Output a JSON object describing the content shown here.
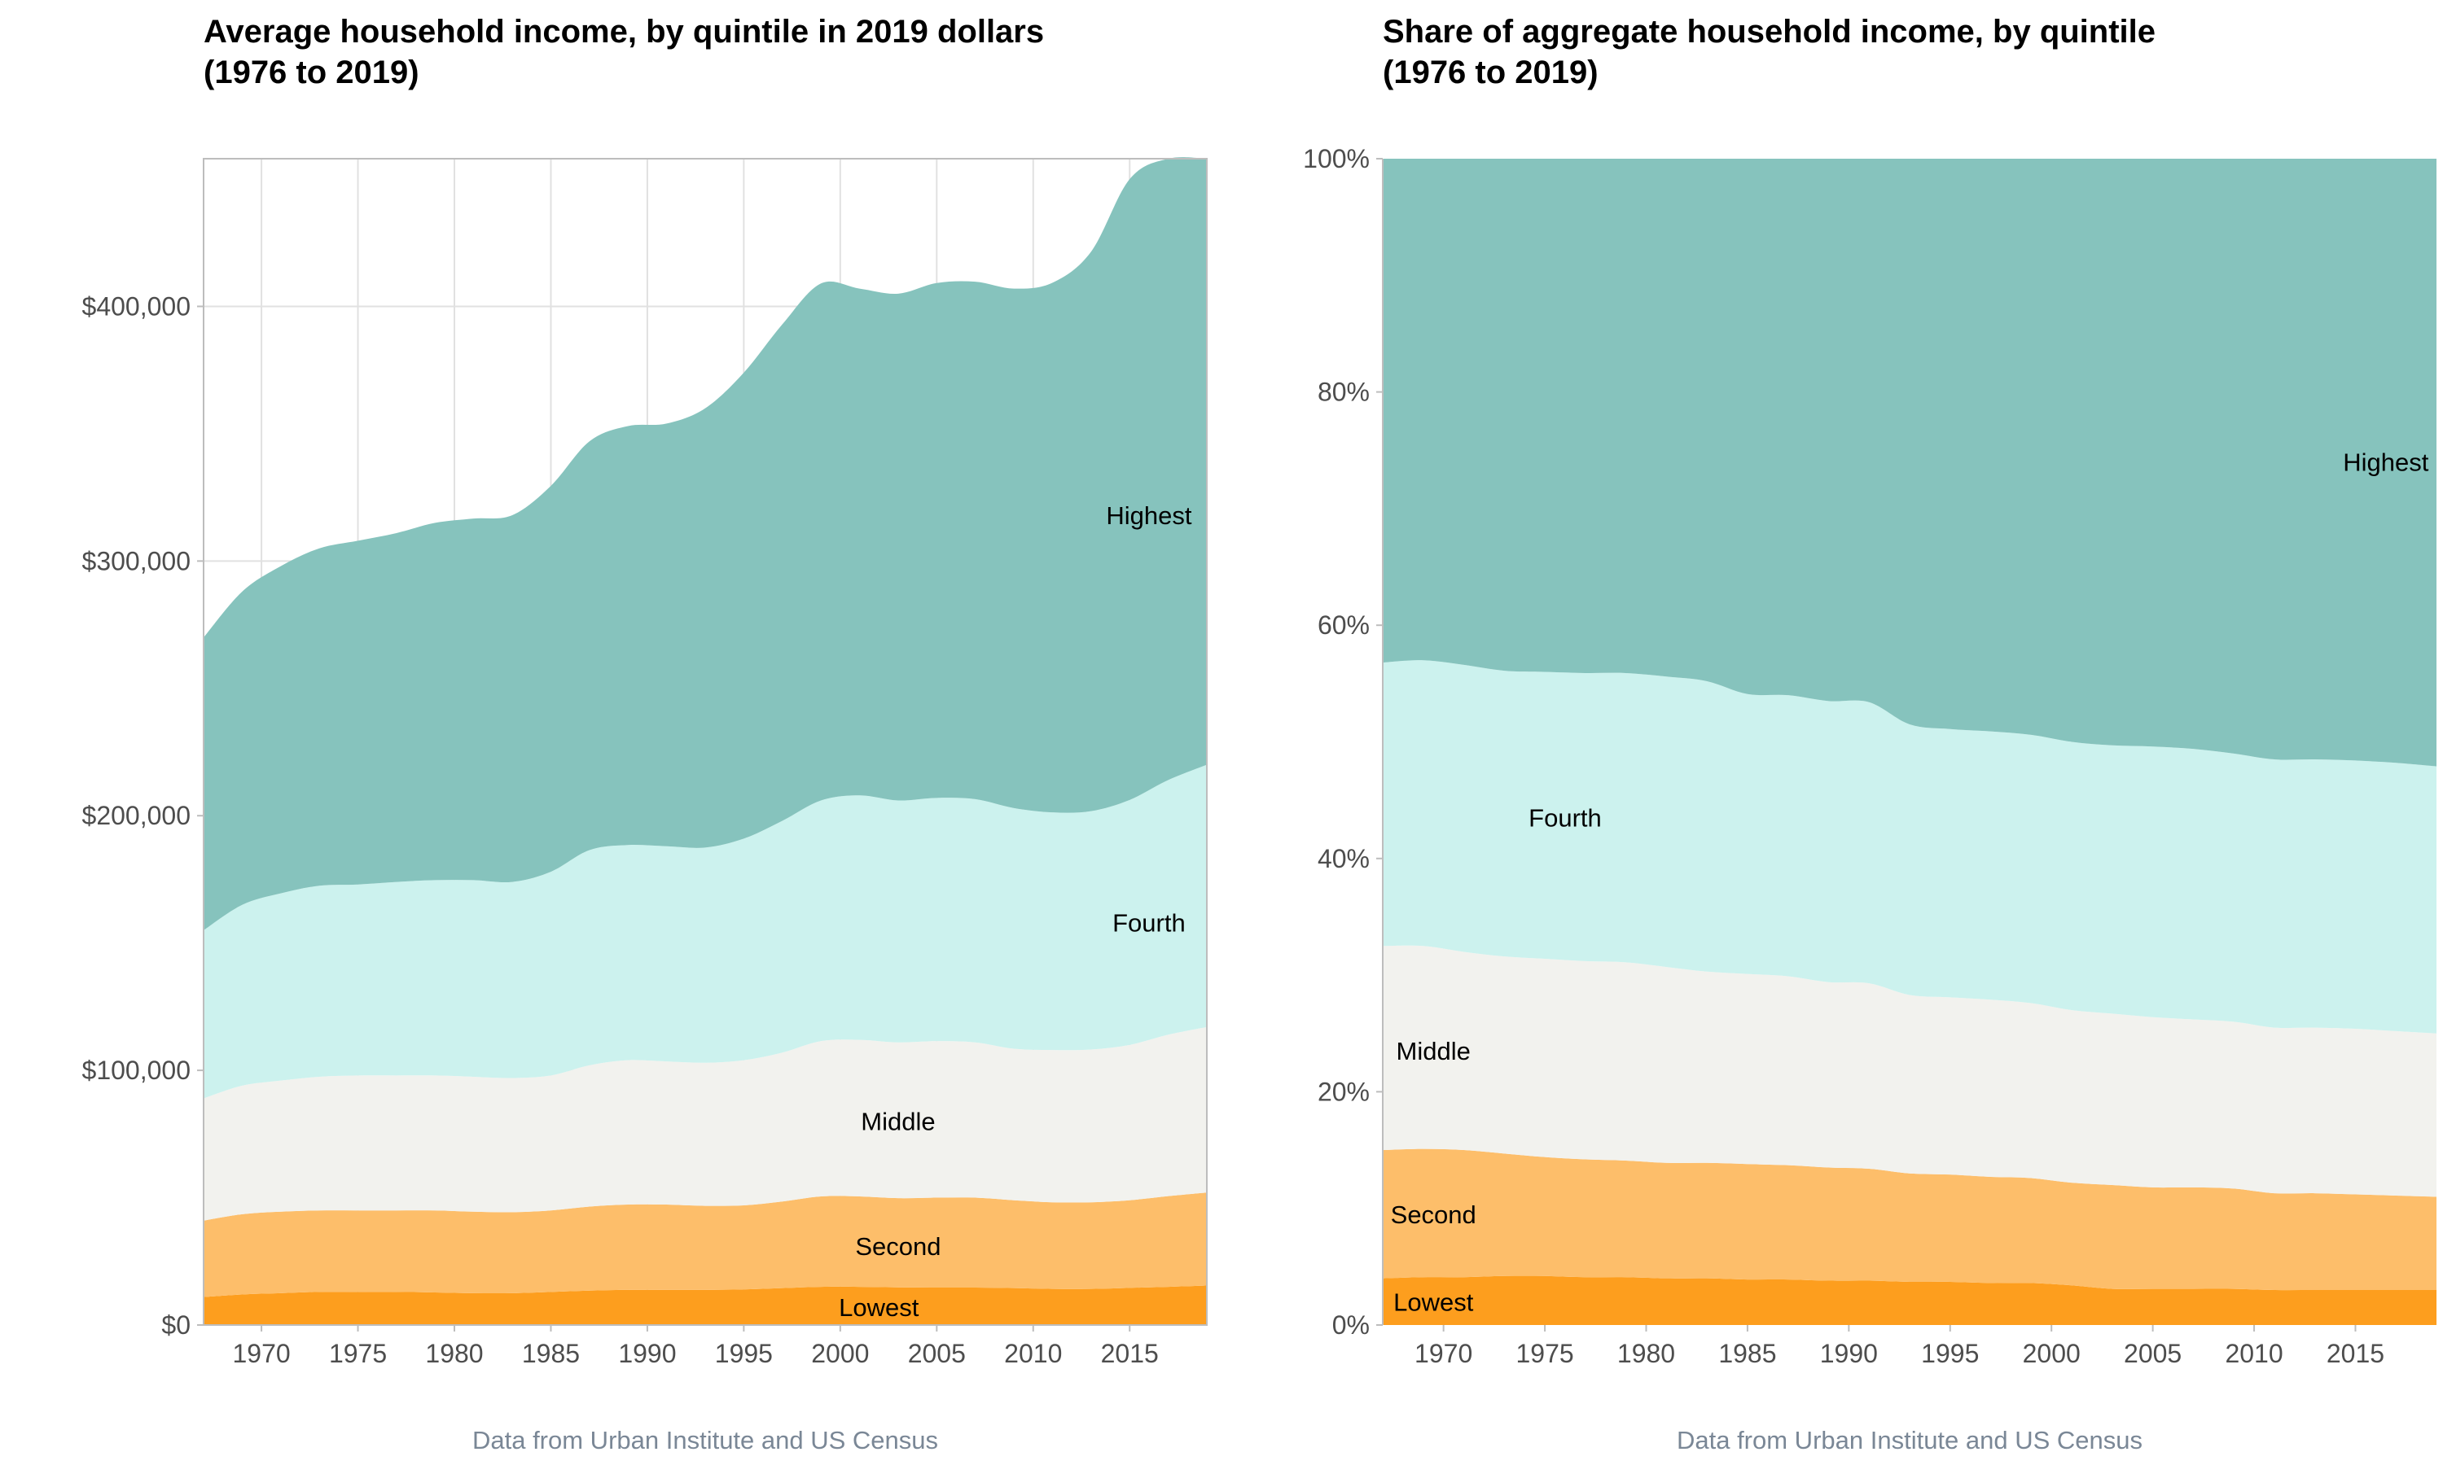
{
  "colors": {
    "Lowest": "#fd9e1e",
    "Second": "#fdbe6a",
    "Middle": "#f2f2ee",
    "Fourth": "#ccf2ee",
    "Highest": "#86c3bd",
    "grid": "#e1e1e1",
    "axis": "#bdbdbd",
    "caption": "#7a8796"
  },
  "chart_data": [
    {
      "type": "area",
      "stacked": true,
      "title_line1": "Average household income, by quintile in 2019 dollars",
      "title_line2": "(1976 to 2019)",
      "caption": "Data from Urban Institute and US Census",
      "xlabel": "",
      "ylabel": "",
      "xlim": [
        1967,
        2019
      ],
      "ylim": [
        0,
        458000
      ],
      "grid": true,
      "x_ticks": [
        1970,
        1975,
        1980,
        1985,
        1990,
        1995,
        2000,
        2005,
        2010,
        2015
      ],
      "x_tick_labels": [
        "1970",
        "1975",
        "1980",
        "1985",
        "1990",
        "1995",
        "2000",
        "2005",
        "2010",
        "2015"
      ],
      "y_ticks": [
        0,
        100000,
        200000,
        300000,
        400000
      ],
      "y_tick_labels": [
        "$0",
        "$100,000",
        "$200,000",
        "$300,000",
        "$400,000"
      ],
      "x": [
        1967,
        1969,
        1971,
        1973,
        1975,
        1977,
        1979,
        1981,
        1983,
        1985,
        1987,
        1989,
        1991,
        1993,
        1995,
        1997,
        1999,
        2001,
        2003,
        2005,
        2007,
        2009,
        2011,
        2013,
        2015,
        2017,
        2019
      ],
      "series": [
        {
          "name": "Lowest",
          "values": [
            11000,
            12000,
            12500,
            13000,
            13000,
            13000,
            12800,
            12500,
            12500,
            13000,
            13500,
            13800,
            13800,
            13800,
            14000,
            14500,
            15000,
            15000,
            14800,
            14700,
            14700,
            14500,
            14200,
            14200,
            14600,
            15000,
            15500
          ]
        },
        {
          "name": "Second",
          "values": [
            30000,
            31500,
            32000,
            32000,
            32000,
            32000,
            32200,
            32000,
            31800,
            32000,
            33000,
            33500,
            33500,
            33000,
            33000,
            34000,
            35500,
            35500,
            35000,
            35300,
            35300,
            34500,
            34000,
            34000,
            34400,
            35600,
            36500
          ]
        },
        {
          "name": "Middle",
          "values": [
            48000,
            50500,
            51500,
            52500,
            53000,
            53000,
            53000,
            53000,
            52700,
            53000,
            55500,
            56700,
            56200,
            56200,
            57000,
            58500,
            61000,
            61500,
            61200,
            61500,
            61000,
            59500,
            59800,
            60000,
            61000,
            63400,
            65000
          ]
        },
        {
          "name": "Fourth",
          "values": [
            66000,
            71000,
            73500,
            75000,
            75000,
            76000,
            76700,
            77200,
            77000,
            80000,
            84500,
            84500,
            84500,
            84500,
            87000,
            91000,
            94500,
            96000,
            95000,
            95500,
            95500,
            94500,
            93300,
            93600,
            96200,
            100000,
            103000
          ]
        },
        {
          "name": "Highest",
          "values": [
            115000,
            123000,
            128500,
            132500,
            135000,
            137000,
            140300,
            142000,
            144000,
            151500,
            160500,
            164500,
            166000,
            172500,
            183000,
            195000,
            203000,
            199000,
            199000,
            202200,
            203200,
            204000,
            208000,
            219700,
            243800,
            257000,
            238000
          ]
        }
      ],
      "labels": {
        "Lowest": "Lowest",
        "Second": "Second",
        "Middle": "Middle",
        "Fourth": "Fourth",
        "Highest": "Highest"
      },
      "label_positions": {
        "Lowest": [
          2002,
          7000
        ],
        "Second": [
          2003,
          31000
        ],
        "Middle": [
          2003,
          80000
        ],
        "Fourth": [
          2016,
          158000
        ],
        "Highest": [
          2016,
          318000
        ]
      }
    },
    {
      "type": "area",
      "stacked": true,
      "percent": true,
      "title_line1": "Share of aggregate household income, by quintile",
      "title_line2": "(1976 to 2019)",
      "caption": "Data from Urban Institute and US Census",
      "xlabel": "",
      "ylabel": "",
      "xlim": [
        1967,
        2019
      ],
      "ylim": [
        0,
        100
      ],
      "grid": false,
      "x_ticks": [
        1970,
        1975,
        1980,
        1985,
        1990,
        1995,
        2000,
        2005,
        2010,
        2015
      ],
      "x_tick_labels": [
        "1970",
        "1975",
        "1980",
        "1985",
        "1990",
        "1995",
        "2000",
        "2005",
        "2010",
        "2015"
      ],
      "y_ticks": [
        0,
        20,
        40,
        60,
        80,
        100
      ],
      "y_tick_labels": [
        "0%",
        "20%",
        "40%",
        "60%",
        "80%",
        "100%"
      ],
      "x": [
        1967,
        1969,
        1971,
        1973,
        1975,
        1977,
        1979,
        1981,
        1983,
        1985,
        1987,
        1989,
        1991,
        1993,
        1995,
        1997,
        1999,
        2001,
        2003,
        2005,
        2007,
        2009,
        2011,
        2013,
        2015,
        2017,
        2019
      ],
      "series": [
        {
          "name": "Lowest",
          "values": [
            4.0,
            4.1,
            4.1,
            4.2,
            4.2,
            4.1,
            4.1,
            4.0,
            4.0,
            3.9,
            3.9,
            3.8,
            3.8,
            3.7,
            3.7,
            3.6,
            3.6,
            3.4,
            3.1,
            3.1,
            3.1,
            3.1,
            3.0,
            3.0,
            3.0,
            3.0,
            3.0
          ]
        },
        {
          "name": "Second",
          "values": [
            11.0,
            11.0,
            10.9,
            10.5,
            10.2,
            10.1,
            10.0,
            9.9,
            9.9,
            9.9,
            9.8,
            9.7,
            9.6,
            9.3,
            9.2,
            9.1,
            9.0,
            8.8,
            8.9,
            8.7,
            8.7,
            8.6,
            8.3,
            8.3,
            8.2,
            8.1,
            8.0
          ]
        },
        {
          "name": "Middle",
          "values": [
            17.5,
            17.4,
            17.0,
            16.9,
            17.0,
            17.0,
            17.0,
            16.8,
            16.4,
            16.3,
            16.2,
            15.9,
            15.9,
            15.3,
            15.2,
            15.2,
            15.0,
            14.8,
            14.7,
            14.6,
            14.4,
            14.3,
            14.2,
            14.2,
            14.2,
            14.1,
            14.0
          ]
        },
        {
          "name": "Fourth",
          "values": [
            24.3,
            24.5,
            24.6,
            24.5,
            24.6,
            24.7,
            24.8,
            24.9,
            24.9,
            24.0,
            24.1,
            24.1,
            24.1,
            23.2,
            23.0,
            23.0,
            23.0,
            23.0,
            23.0,
            23.2,
            23.2,
            23.0,
            23.0,
            23.0,
            23.0,
            23.0,
            22.9
          ]
        },
        {
          "name": "Highest",
          "values": [
            43.2,
            43.0,
            43.4,
            43.9,
            44.0,
            44.1,
            44.1,
            44.4,
            44.8,
            45.9,
            46.0,
            46.5,
            46.6,
            48.5,
            48.9,
            49.1,
            49.4,
            50.0,
            50.3,
            50.4,
            50.6,
            51.0,
            51.5,
            51.5,
            51.6,
            51.8,
            52.1
          ]
        }
      ],
      "labels": {
        "Lowest": "Lowest",
        "Second": "Second",
        "Middle": "Middle",
        "Fourth": "Fourth",
        "Highest": "Highest"
      },
      "label_positions": {
        "Lowest": [
          1969.5,
          2.0
        ],
        "Second": [
          1969.5,
          9.5
        ],
        "Middle": [
          1969.5,
          23.5
        ],
        "Fourth": [
          1976,
          43.5
        ],
        "Highest": [
          2016.5,
          74.0
        ]
      }
    }
  ]
}
